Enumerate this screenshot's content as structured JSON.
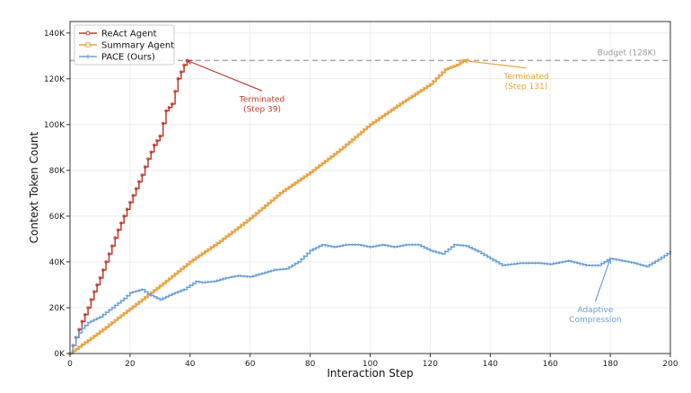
{
  "chart_data": {
    "type": "line",
    "xlabel": "Interaction Step",
    "ylabel": "Context Token Count",
    "xlim": [
      0,
      200
    ],
    "ylim": [
      0,
      145000
    ],
    "x_ticks": [
      0,
      20,
      40,
      60,
      80,
      100,
      120,
      140,
      160,
      180,
      200
    ],
    "x_tick_labels": [
      "0",
      "20",
      "40",
      "60",
      "80",
      "100",
      "120",
      "140",
      "160",
      "180",
      "200"
    ],
    "y_ticks": [
      0,
      20000,
      40000,
      60000,
      80000,
      100000,
      120000,
      140000
    ],
    "y_tick_labels": [
      "0K",
      "20K",
      "40K",
      "60K",
      "80K",
      "100K",
      "120K",
      "140K"
    ],
    "grid": true,
    "legend_position": "top-left",
    "budget": {
      "value": 128000,
      "label": "Budget (128K)",
      "color": "#aaaaaa"
    },
    "series": [
      {
        "name": "ReAct Agent",
        "color": "#c0392b",
        "marker": "circle",
        "points": [
          [
            0,
            0
          ],
          [
            2,
            7000
          ],
          [
            4,
            14000
          ],
          [
            6,
            20000
          ],
          [
            8,
            27000
          ],
          [
            10,
            33000
          ],
          [
            12,
            40000
          ],
          [
            14,
            47000
          ],
          [
            16,
            54000
          ],
          [
            18,
            60000
          ],
          [
            20,
            66000
          ],
          [
            22,
            72000
          ],
          [
            24,
            78000
          ],
          [
            26,
            85000
          ],
          [
            28,
            91000
          ],
          [
            30,
            95000
          ],
          [
            32,
            106000
          ],
          [
            34,
            109000
          ],
          [
            36,
            120000
          ],
          [
            38,
            126000
          ],
          [
            39,
            128000
          ]
        ]
      },
      {
        "name": "Summary Agent",
        "color": "#e8a03a",
        "marker": "square",
        "points": [
          [
            0,
            0
          ],
          [
            10,
            9500
          ],
          [
            20,
            19500
          ],
          [
            30,
            29500
          ],
          [
            40,
            40000
          ],
          [
            50,
            49000
          ],
          [
            60,
            59000
          ],
          [
            70,
            70000
          ],
          [
            80,
            79000
          ],
          [
            90,
            89000
          ],
          [
            100,
            100000
          ],
          [
            110,
            109000
          ],
          [
            120,
            117500
          ],
          [
            125,
            124000
          ],
          [
            129,
            126000
          ],
          [
            131,
            128000
          ]
        ]
      },
      {
        "name": "PACE (Ours)",
        "color": "#6a9fd8",
        "marker": "plus",
        "points": [
          [
            0,
            0
          ],
          [
            2,
            7000
          ],
          [
            4,
            11000
          ],
          [
            6,
            13500
          ],
          [
            10,
            16000
          ],
          [
            14,
            20000
          ],
          [
            18,
            24000
          ],
          [
            20,
            26500
          ],
          [
            24,
            28000
          ],
          [
            26,
            26000
          ],
          [
            30,
            23500
          ],
          [
            34,
            26000
          ],
          [
            38,
            28000
          ],
          [
            42,
            31500
          ],
          [
            44,
            31000
          ],
          [
            48,
            31500
          ],
          [
            52,
            33000
          ],
          [
            56,
            34000
          ],
          [
            60,
            33500
          ],
          [
            64,
            35000
          ],
          [
            68,
            36500
          ],
          [
            72,
            37000
          ],
          [
            76,
            40000
          ],
          [
            80,
            45000
          ],
          [
            84,
            47500
          ],
          [
            88,
            46500
          ],
          [
            92,
            47500
          ],
          [
            96,
            47500
          ],
          [
            100,
            46500
          ],
          [
            104,
            47500
          ],
          [
            108,
            46500
          ],
          [
            112,
            47500
          ],
          [
            116,
            47500
          ],
          [
            120,
            45000
          ],
          [
            124,
            43500
          ],
          [
            128,
            47500
          ],
          [
            132,
            47000
          ],
          [
            136,
            44500
          ],
          [
            140,
            41500
          ],
          [
            144,
            38500
          ],
          [
            150,
            39500
          ],
          [
            156,
            39500
          ],
          [
            160,
            39000
          ],
          [
            166,
            40500
          ],
          [
            172,
            38500
          ],
          [
            176,
            38500
          ],
          [
            180,
            41500
          ],
          [
            184,
            40500
          ],
          [
            188,
            39500
          ],
          [
            192,
            38000
          ],
          [
            196,
            41000
          ],
          [
            200,
            44500
          ]
        ]
      }
    ],
    "annotations": [
      {
        "text_lines": [
          "Terminated",
          "(Step 39)"
        ],
        "color": "#c0392b",
        "target": [
          39,
          128000
        ],
        "text_at": [
          64,
          110000
        ]
      },
      {
        "text_lines": [
          "Terminated",
          "(Step 131)"
        ],
        "color": "#e8a03a",
        "target": [
          131,
          128000
        ],
        "text_at": [
          152,
          120000
        ]
      },
      {
        "text_lines": [
          "Adaptive",
          "Compression"
        ],
        "color": "#6a9fd8",
        "target": [
          180,
          41500
        ],
        "text_at": [
          175,
          18000
        ]
      }
    ]
  }
}
